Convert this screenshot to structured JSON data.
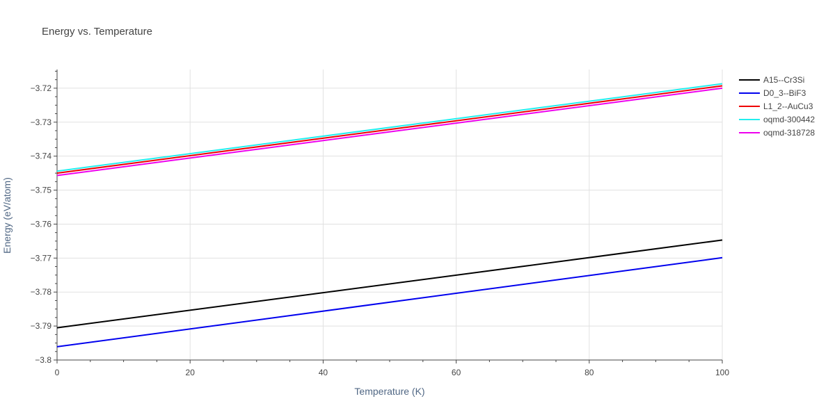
{
  "chart_data": {
    "type": "line",
    "title": "Energy vs. Temperature",
    "xlabel": "Temperature (K)",
    "ylabel": "Energy (eV/atom)",
    "xlim": [
      0,
      100
    ],
    "ylim": [
      -3.8,
      -3.7145
    ],
    "x_ticks": [
      0,
      20,
      40,
      60,
      80,
      100
    ],
    "y_ticks": [
      -3.8,
      -3.79,
      -3.78,
      -3.77,
      -3.76,
      -3.75,
      -3.74,
      -3.73,
      -3.72
    ],
    "x_tick_labels": [
      "0",
      "20",
      "40",
      "60",
      "80",
      "100"
    ],
    "y_tick_labels": [
      "−3.8",
      "−3.79",
      "−3.78",
      "−3.77",
      "−3.76",
      "−3.75",
      "−3.74",
      "−3.73",
      "−3.72"
    ],
    "grid": true,
    "legend_position": "top-right",
    "series": [
      {
        "name": "A15--Cr3Si",
        "color": "#000000",
        "x": [
          0,
          100
        ],
        "y": [
          -3.7905,
          -3.7647
        ]
      },
      {
        "name": "D0_3--BiF3",
        "color": "#0000ee",
        "x": [
          0,
          100
        ],
        "y": [
          -3.7961,
          -3.7699
        ]
      },
      {
        "name": "L1_2--AuCu3",
        "color": "#ee0000",
        "x": [
          0,
          100
        ],
        "y": [
          -3.745,
          -3.7193
        ]
      },
      {
        "name": "oqmd-300442",
        "color": "#22eeee",
        "x": [
          0,
          100
        ],
        "y": [
          -3.7444,
          -3.7187
        ]
      },
      {
        "name": "oqmd-318728",
        "color": "#ee00ee",
        "x": [
          0,
          100
        ],
        "y": [
          -3.7457,
          -3.72
        ]
      }
    ]
  }
}
